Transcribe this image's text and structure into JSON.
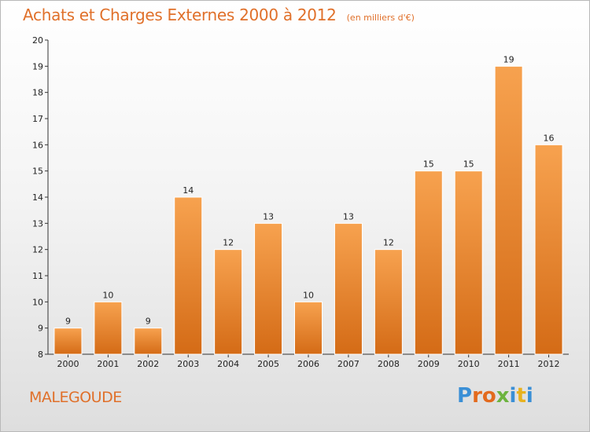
{
  "chart_data": {
    "type": "bar",
    "title": "Achats et Charges Externes 2000 à 2012",
    "subtitle": "(en milliers d'€)",
    "categories": [
      "2000",
      "2001",
      "2002",
      "2003",
      "2004",
      "2005",
      "2006",
      "2007",
      "2008",
      "2009",
      "2010",
      "2011",
      "2012"
    ],
    "values": [
      9,
      10,
      9,
      14,
      12,
      13,
      10,
      13,
      12,
      15,
      15,
      19,
      16
    ],
    "ylim": [
      8,
      20
    ],
    "yticks": [
      "8",
      "9",
      "10",
      "11",
      "12",
      "13",
      "14",
      "15",
      "16",
      "17",
      "18",
      "19",
      "20"
    ],
    "grid": false,
    "bar_color_top": "#f7a24f",
    "bar_color_bottom": "#d46b16"
  },
  "footer": {
    "commune": "MALEGOUDE",
    "logo": "Proxiti",
    "logo_colors": [
      "#3a8fd6",
      "#e36a1e",
      "#e36a1e",
      "#6db33f",
      "#3a8fd6",
      "#e8b21f",
      "#3a8fd6"
    ]
  }
}
